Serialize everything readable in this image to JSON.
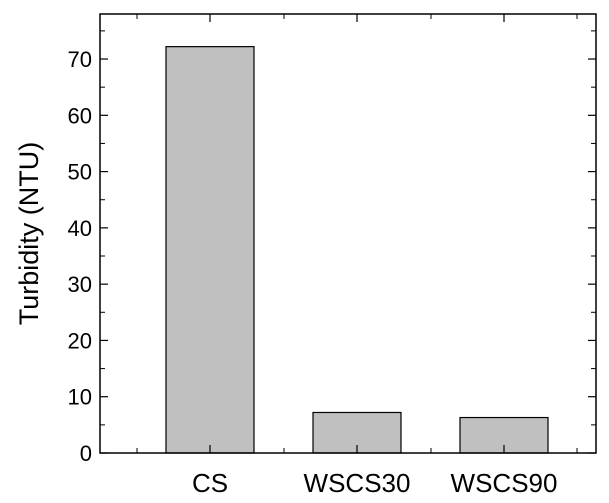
{
  "chart_data": {
    "type": "bar",
    "title": "",
    "xlabel": "",
    "ylabel": "Turbidity (NTU)",
    "categories": [
      "CS",
      "WSCS30",
      "WSCS90"
    ],
    "values": [
      72.2,
      7.2,
      6.3
    ],
    "ylim": [
      0,
      78
    ],
    "yticks": [
      "0",
      "10",
      "20",
      "30",
      "40",
      "50",
      "60",
      "70"
    ],
    "grid": false,
    "legend": "none",
    "bar_color": "#c0c0c0",
    "edge_color": "#000000"
  }
}
